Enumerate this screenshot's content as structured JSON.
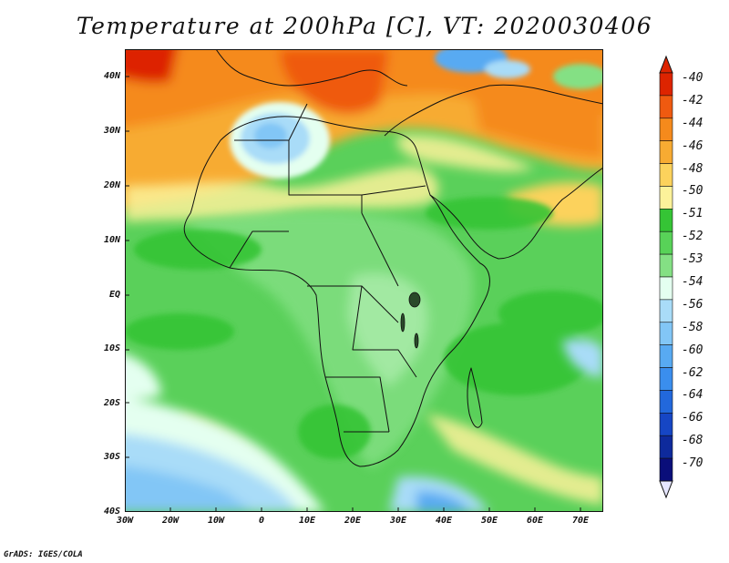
{
  "title": "Temperature at 200hPa [C], VT: 2020030406",
  "credit": "GrADS: IGES/COLA",
  "map": {
    "lat_labels": [
      "40N",
      "30N",
      "20N",
      "10N",
      "EQ",
      "10S",
      "20S",
      "30S",
      "40S"
    ],
    "lon_labels": [
      "30W",
      "20W",
      "10W",
      "0",
      "10E",
      "20E",
      "30E",
      "40E",
      "50E",
      "60E",
      "70E"
    ]
  },
  "colorbar": {
    "labels": [
      "-40",
      "-42",
      "-44",
      "-46",
      "-48",
      "-50",
      "-51",
      "-52",
      "-53",
      "-54",
      "-56",
      "-58",
      "-60",
      "-62",
      "-64",
      "-66",
      "-68",
      "-70"
    ],
    "colors": [
      "#dd2400",
      "#ef5a10",
      "#f58a1c",
      "#f7ab32",
      "#fcd25c",
      "#fcf29a",
      "#35c435",
      "#58d258",
      "#84e084",
      "#e4fff0",
      "#a9dcf8",
      "#82c6f6",
      "#58aaf2",
      "#3a8eee",
      "#2268dc",
      "#1646c4",
      "#0e2a9c",
      "#0a0e7a"
    ],
    "overflow_top_color": "#dd2400",
    "overflow_bottom_color": "#e6e6ff"
  },
  "legend_colors": {
    "ocean_base": "#5ad05a",
    "land_base": "#7ee07e",
    "north_warm": "#f7ab32",
    "med_hot": "#ef5a10",
    "cold_pool": "#a9dcf8",
    "south_cold": "#58aaf2",
    "lakes": "#2a4a2a"
  }
}
